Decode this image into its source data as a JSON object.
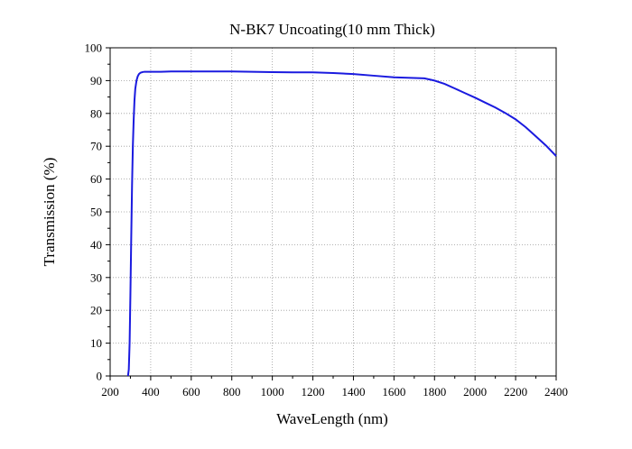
{
  "chart_data": {
    "type": "line",
    "title": "N-BK7 Uncoating(10 mm Thick)",
    "xlabel": "WaveLength (nm)",
    "ylabel": "Transmission (%)",
    "xlim": [
      200,
      2400
    ],
    "ylim": [
      0,
      100
    ],
    "xticks": [
      200,
      400,
      600,
      800,
      1000,
      1200,
      1400,
      1600,
      1800,
      2000,
      2200,
      2400
    ],
    "yticks": [
      0,
      10,
      20,
      30,
      40,
      50,
      60,
      70,
      80,
      90,
      100
    ],
    "grid": true,
    "line_color": "#1a1adf",
    "series": [
      {
        "x": [
          288,
          292,
          296,
          300,
          304,
          308,
          312,
          316,
          320,
          324,
          330,
          336,
          342,
          350,
          360,
          370,
          380,
          400,
          450,
          500,
          600,
          700,
          800,
          900,
          1000,
          1100,
          1200,
          1300,
          1400,
          1500,
          1600,
          1700,
          1750,
          1800,
          1850,
          1900,
          1950,
          2000,
          2050,
          2100,
          2150,
          2200,
          2250,
          2300,
          2350,
          2400
        ],
        "y": [
          0,
          2,
          10,
          25,
          42,
          58,
          70,
          78,
          84,
          87.5,
          90,
          91.3,
          92,
          92.4,
          92.6,
          92.7,
          92.7,
          92.7,
          92.7,
          92.8,
          92.8,
          92.8,
          92.8,
          92.7,
          92.6,
          92.5,
          92.5,
          92.3,
          92.0,
          91.5,
          91.0,
          90.8,
          90.7,
          90.0,
          89.0,
          87.6,
          86.2,
          84.8,
          83.3,
          81.8,
          80.1,
          78.2,
          75.8,
          73.0,
          70.2,
          67.0
        ]
      }
    ]
  }
}
